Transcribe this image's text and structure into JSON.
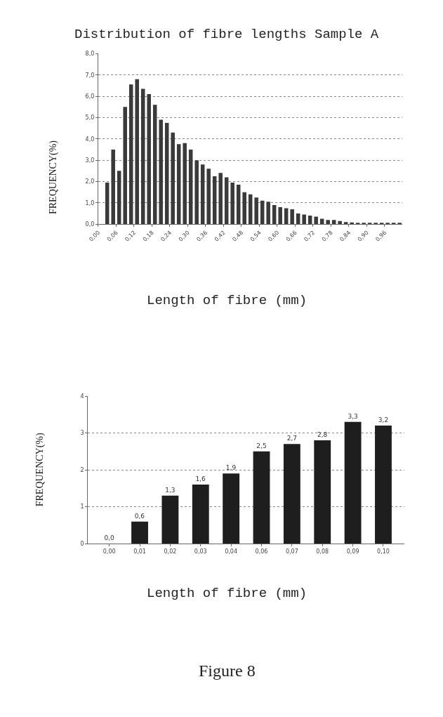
{
  "chart_data": [
    {
      "type": "bar",
      "title": "Distribution of fibre lengths Sample A",
      "xlabel": "Length of fibre (mm)",
      "ylabel": "FREQUENCY(%)",
      "x": [
        0.03,
        0.05,
        0.07,
        0.09,
        0.11,
        0.13,
        0.15,
        0.17,
        0.19,
        0.21,
        0.23,
        0.25,
        0.27,
        0.29,
        0.31,
        0.33,
        0.35,
        0.37,
        0.39,
        0.41,
        0.43,
        0.45,
        0.47,
        0.49,
        0.51,
        0.53,
        0.55,
        0.57,
        0.59,
        0.61,
        0.63,
        0.65,
        0.67,
        0.69,
        0.71,
        0.73,
        0.75,
        0.77,
        0.79,
        0.81,
        0.83,
        0.85,
        0.87,
        0.89,
        0.91,
        0.93,
        0.95,
        0.97,
        0.99,
        1.01
      ],
      "values": [
        1.95,
        3.5,
        2.5,
        5.5,
        6.55,
        6.8,
        6.35,
        6.1,
        5.6,
        4.9,
        4.75,
        4.3,
        3.75,
        3.8,
        3.5,
        3.0,
        2.8,
        2.6,
        2.25,
        2.4,
        2.2,
        1.95,
        1.85,
        1.5,
        1.4,
        1.25,
        1.1,
        1.05,
        0.9,
        0.8,
        0.75,
        0.7,
        0.5,
        0.45,
        0.4,
        0.35,
        0.25,
        0.2,
        0.2,
        0.15,
        0.1,
        0.08,
        0.06,
        0.06,
        0.05,
        0.05,
        0.04,
        0.03,
        0.03,
        0.03
      ],
      "color": "#3a3a3a",
      "xlim": [
        0,
        1.02
      ],
      "xticks": [
        {
          "value": 0,
          "label": "0,00"
        },
        {
          "value": 0.06,
          "label": "0,06"
        },
        {
          "value": 0.12,
          "label": "0,12"
        },
        {
          "value": 0.18,
          "label": "0,18"
        },
        {
          "value": 0.24,
          "label": "0,24"
        },
        {
          "value": 0.3,
          "label": "0,30"
        },
        {
          "value": 0.36,
          "label": "0,36"
        },
        {
          "value": 0.42,
          "label": "0,42"
        },
        {
          "value": 0.48,
          "label": "0,48"
        },
        {
          "value": 0.54,
          "label": "0,54"
        },
        {
          "value": 0.6,
          "label": "0,60"
        },
        {
          "value": 0.66,
          "label": "0,66"
        },
        {
          "value": 0.72,
          "label": "0,72"
        },
        {
          "value": 0.78,
          "label": "0,78"
        },
        {
          "value": 0.84,
          "label": "0,84"
        },
        {
          "value": 0.9,
          "label": "0,90"
        },
        {
          "value": 0.96,
          "label": "0,96"
        }
      ],
      "ylim": [
        0,
        8
      ],
      "yticks": [
        {
          "value": 0,
          "label": "0,0"
        },
        {
          "value": 1,
          "label": "1,0"
        },
        {
          "value": 2,
          "label": "2,0"
        },
        {
          "value": 3,
          "label": "3,0"
        },
        {
          "value": 4,
          "label": "4,0"
        },
        {
          "value": 5,
          "label": "5,0"
        },
        {
          "value": 6,
          "label": "6,0"
        },
        {
          "value": 7,
          "label": "7,0"
        },
        {
          "value": 8,
          "label": "8,0"
        }
      ],
      "grid": "y"
    },
    {
      "type": "bar",
      "xlabel": "Length of fibre (mm)",
      "ylabel": "FREQUENCY(%)",
      "categories": [
        "0,00",
        "0,01",
        "0,02",
        "0,03",
        "0,04",
        "0,06",
        "0,07",
        "0,08",
        "0,09",
        "0,10"
      ],
      "values": [
        0.0,
        0.6,
        1.3,
        1.6,
        1.9,
        2.5,
        2.7,
        2.8,
        3.3,
        3.2
      ],
      "value_labels": [
        "0,0",
        "0,6",
        "1,3",
        "1,6",
        "1,9",
        "2,5",
        "2,7",
        "2,8",
        "3,3",
        "3,2"
      ],
      "color": "#1e1e1e",
      "ylim": [
        0,
        4
      ],
      "yticks": [
        0,
        1,
        2,
        3,
        4
      ],
      "grid": "y",
      "annotations": [
        "Figure 8"
      ]
    }
  ]
}
